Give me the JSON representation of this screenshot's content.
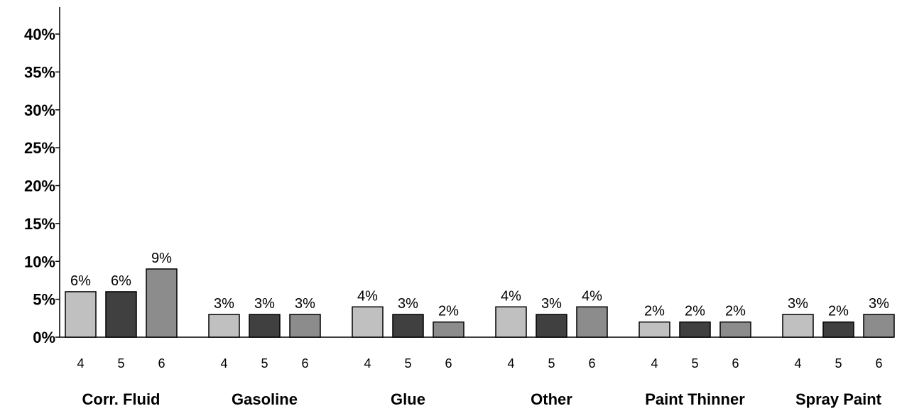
{
  "chart_data": {
    "type": "bar",
    "categories": [
      "Corr. Fluid",
      "Gasoline",
      "Glue",
      "Other",
      "Paint Thinner",
      "Spray Paint"
    ],
    "subcategories": [
      "4",
      "5",
      "6"
    ],
    "series": [
      {
        "values": [
          6,
          3,
          4,
          4,
          2,
          3
        ],
        "color": "#c0c0c0"
      },
      {
        "values": [
          6,
          3,
          3,
          3,
          2,
          2
        ],
        "color": "#404040"
      },
      {
        "values": [
          9,
          3,
          2,
          4,
          2,
          3
        ],
        "color": "#8c8c8c"
      }
    ],
    "value_labels": [
      [
        "6%",
        "3%",
        "4%",
        "4%",
        "2%",
        "3%"
      ],
      [
        "6%",
        "3%",
        "3%",
        "3%",
        "2%",
        "2%"
      ],
      [
        "9%",
        "3%",
        "2%",
        "4%",
        "2%",
        "3%"
      ]
    ],
    "y_ticks": [
      0,
      5,
      10,
      15,
      20,
      25,
      30,
      35,
      40
    ],
    "y_tick_labels": [
      "0%",
      "5%",
      "10%",
      "15%",
      "20%",
      "25%",
      "30%",
      "35%",
      "40%"
    ],
    "ylim": [
      0,
      40
    ],
    "grid": false,
    "legend": "none",
    "title": "",
    "xlabel": "",
    "ylabel": ""
  }
}
